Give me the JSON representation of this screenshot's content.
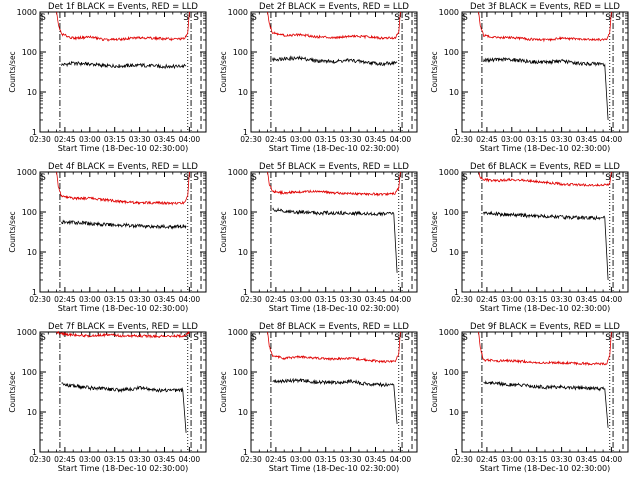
{
  "figure": {
    "panel_title_template": "Det {det} BLACK = Events, RED = LLD",
    "ylabel": "Counts/sec",
    "xlabel": "Start Time (18-Dec-10 02:30:00)",
    "x_tick_labels": [
      "02:30",
      "02:45",
      "03:00",
      "03:15",
      "03:30",
      "03:45",
      "04:00"
    ],
    "y_tick_labels": [
      "1",
      "10",
      "100",
      "1000"
    ],
    "saa_marker": "S",
    "colors": {
      "events": "#000000",
      "lld": "#e00000",
      "axes": "#000000"
    }
  },
  "chart_data": [
    {
      "type": "line",
      "title": "Det 1f BLACK = Events, RED = LLD",
      "det": "1f",
      "xlabel": "Start Time (18-Dec-10 02:30:00)",
      "ylabel": "Counts/sec",
      "x_unit": "minutes after 02:30",
      "xlim": [
        0,
        100
      ],
      "ylim": [
        1,
        1000
      ],
      "yscale": "log",
      "vlines": [
        {
          "x": 12,
          "style": "dashdot"
        },
        {
          "x": 89,
          "style": "dotted"
        },
        {
          "x": 91,
          "style": "dashdot"
        },
        {
          "x": 97,
          "style": "dashed"
        }
      ],
      "series": [
        {
          "name": "BLACK = Events",
          "color": "#000000",
          "x": [
            13,
            20,
            30,
            40,
            50,
            60,
            70,
            80,
            88
          ],
          "values": [
            48,
            52,
            50,
            45,
            45,
            47,
            44,
            43,
            45
          ]
        },
        {
          "name": "RED = LLD",
          "color": "#e00000",
          "x": [
            10,
            11,
            13,
            20,
            30,
            40,
            50,
            60,
            70,
            80,
            87,
            89,
            90
          ],
          "values": [
            1000,
            500,
            280,
            220,
            240,
            200,
            210,
            230,
            220,
            210,
            215,
            300,
            1000
          ]
        }
      ]
    },
    {
      "type": "line",
      "title": "Det 2f BLACK = Events, RED = LLD",
      "det": "2f",
      "xlabel": "Start Time (18-Dec-10 02:30:00)",
      "ylabel": "Counts/sec",
      "x_unit": "minutes after 02:30",
      "xlim": [
        0,
        100
      ],
      "ylim": [
        1,
        1000
      ],
      "yscale": "log",
      "vlines": [
        {
          "x": 12,
          "style": "dashdot"
        },
        {
          "x": 89,
          "style": "dotted"
        },
        {
          "x": 91,
          "style": "dashdot"
        },
        {
          "x": 97,
          "style": "dashed"
        }
      ],
      "series": [
        {
          "name": "BLACK = Events",
          "color": "#000000",
          "x": [
            13,
            20,
            30,
            40,
            50,
            60,
            70,
            80,
            88
          ],
          "values": [
            65,
            68,
            70,
            60,
            58,
            62,
            55,
            50,
            55
          ]
        },
        {
          "name": "RED = LLD",
          "color": "#e00000",
          "x": [
            10,
            11,
            13,
            20,
            30,
            40,
            50,
            60,
            70,
            80,
            87,
            89,
            90
          ],
          "values": [
            1000,
            500,
            300,
            260,
            270,
            240,
            230,
            250,
            240,
            220,
            230,
            300,
            1000
          ]
        }
      ]
    },
    {
      "type": "line",
      "title": "Det 3f BLACK = Events, RED = LLD",
      "det": "3f",
      "xlabel": "Start Time (18-Dec-10 02:30:00)",
      "ylabel": "Counts/sec",
      "x_unit": "minutes after 02:30",
      "xlim": [
        0,
        100
      ],
      "ylim": [
        1,
        1000
      ],
      "yscale": "log",
      "vlines": [
        {
          "x": 12,
          "style": "dashdot"
        },
        {
          "x": 89,
          "style": "dotted"
        },
        {
          "x": 91,
          "style": "dashdot"
        },
        {
          "x": 97,
          "style": "dashed"
        }
      ],
      "series": [
        {
          "name": "BLACK = Events",
          "color": "#000000",
          "x": [
            13,
            20,
            30,
            40,
            50,
            60,
            70,
            80,
            86,
            88
          ],
          "values": [
            62,
            65,
            65,
            58,
            55,
            60,
            52,
            50,
            48,
            2
          ]
        },
        {
          "name": "RED = LLD",
          "color": "#e00000",
          "x": [
            10,
            11,
            13,
            20,
            30,
            40,
            50,
            60,
            70,
            80,
            87,
            89,
            90
          ],
          "values": [
            1000,
            450,
            260,
            230,
            230,
            210,
            200,
            220,
            210,
            200,
            210,
            300,
            1000
          ]
        }
      ]
    },
    {
      "type": "line",
      "title": "Det 4f BLACK = Events, RED = LLD",
      "det": "4f",
      "xlabel": "Start Time (18-Dec-10 02:30:00)",
      "ylabel": "Counts/sec",
      "x_unit": "minutes after 02:30",
      "xlim": [
        0,
        100
      ],
      "ylim": [
        1,
        1000
      ],
      "yscale": "log",
      "vlines": [
        {
          "x": 12,
          "style": "dashdot"
        },
        {
          "x": 89,
          "style": "dotted"
        },
        {
          "x": 91,
          "style": "dashdot"
        },
        {
          "x": 97,
          "style": "dashed"
        }
      ],
      "series": [
        {
          "name": "BLACK = Events",
          "color": "#000000",
          "x": [
            13,
            20,
            30,
            40,
            50,
            60,
            70,
            80,
            88
          ],
          "values": [
            55,
            55,
            52,
            48,
            47,
            45,
            43,
            42,
            45
          ]
        },
        {
          "name": "RED = LLD",
          "color": "#e00000",
          "x": [
            10,
            11,
            13,
            20,
            30,
            40,
            50,
            60,
            70,
            80,
            87,
            89,
            90
          ],
          "values": [
            1000,
            450,
            240,
            220,
            220,
            200,
            180,
            170,
            170,
            165,
            170,
            250,
            1000
          ]
        }
      ]
    },
    {
      "type": "line",
      "title": "Det 5f BLACK = Events, RED = LLD",
      "det": "5f",
      "xlabel": "Start Time (18-Dec-10 02:30:00)",
      "ylabel": "Counts/sec",
      "x_unit": "minutes after 02:30",
      "xlim": [
        0,
        100
      ],
      "ylim": [
        1,
        1000
      ],
      "yscale": "log",
      "vlines": [
        {
          "x": 12,
          "style": "dashdot"
        },
        {
          "x": 89,
          "style": "dotted"
        },
        {
          "x": 91,
          "style": "dashdot"
        },
        {
          "x": 97,
          "style": "dashed"
        }
      ],
      "series": [
        {
          "name": "BLACK = Events",
          "color": "#000000",
          "x": [
            13,
            20,
            30,
            40,
            50,
            60,
            70,
            80,
            86,
            88
          ],
          "values": [
            115,
            105,
            100,
            95,
            95,
            95,
            90,
            90,
            90,
            3
          ]
        },
        {
          "name": "RED = LLD",
          "color": "#e00000",
          "x": [
            10,
            11,
            13,
            20,
            30,
            40,
            50,
            60,
            70,
            80,
            87,
            89,
            90
          ],
          "values": [
            1000,
            500,
            330,
            300,
            320,
            330,
            300,
            290,
            280,
            280,
            290,
            400,
            1000
          ]
        }
      ]
    },
    {
      "type": "line",
      "title": "Det 6f BLACK = Events, RED = LLD",
      "det": "6f",
      "xlabel": "Start Time (18-Dec-10 02:30:00)",
      "ylabel": "Counts/sec",
      "x_unit": "minutes after 02:30",
      "xlim": [
        0,
        100
      ],
      "ylim": [
        1,
        1000
      ],
      "yscale": "log",
      "vlines": [
        {
          "x": 12,
          "style": "dashdot"
        },
        {
          "x": 89,
          "style": "dotted"
        },
        {
          "x": 91,
          "style": "dashdot"
        },
        {
          "x": 97,
          "style": "dashed"
        }
      ],
      "series": [
        {
          "name": "BLACK = Events",
          "color": "#000000",
          "x": [
            13,
            20,
            30,
            40,
            50,
            60,
            70,
            80,
            86,
            88
          ],
          "values": [
            95,
            90,
            85,
            80,
            78,
            75,
            72,
            70,
            72,
            2
          ]
        },
        {
          "name": "RED = LLD",
          "color": "#e00000",
          "x": [
            10,
            11,
            13,
            20,
            30,
            40,
            50,
            60,
            70,
            80,
            87,
            89,
            90
          ],
          "values": [
            1000,
            750,
            650,
            600,
            650,
            600,
            550,
            500,
            480,
            470,
            480,
            500,
            1000
          ]
        }
      ]
    },
    {
      "type": "line",
      "title": "Det 7f BLACK = Events, RED = LLD",
      "det": "7f",
      "xlabel": "Start Time (18-Dec-10 02:30:00)",
      "ylabel": "Counts/sec",
      "x_unit": "minutes after 02:30",
      "xlim": [
        0,
        100
      ],
      "ylim": [
        1,
        1000
      ],
      "yscale": "log",
      "vlines": [
        {
          "x": 12,
          "style": "dashdot"
        },
        {
          "x": 89,
          "style": "dotted"
        },
        {
          "x": 91,
          "style": "dashdot"
        },
        {
          "x": 97,
          "style": "dashed"
        }
      ],
      "series": [
        {
          "name": "BLACK = Events",
          "color": "#000000",
          "x": [
            13,
            20,
            30,
            40,
            50,
            60,
            70,
            80,
            86,
            88
          ],
          "values": [
            50,
            45,
            40,
            38,
            35,
            40,
            35,
            35,
            35,
            3
          ]
        },
        {
          "name": "RED = LLD",
          "color": "#e00000",
          "x": [
            10,
            11,
            13,
            20,
            30,
            40,
            50,
            60,
            70,
            80,
            87,
            89,
            90
          ],
          "values": [
            1000,
            950,
            900,
            850,
            800,
            850,
            800,
            800,
            780,
            800,
            800,
            900,
            1000
          ]
        }
      ]
    },
    {
      "type": "line",
      "title": "Det 8f BLACK = Events, RED = LLD",
      "det": "8f",
      "xlabel": "Start Time (18-Dec-10 02:30:00)",
      "ylabel": "Counts/sec",
      "x_unit": "minutes after 02:30",
      "xlim": [
        0,
        100
      ],
      "ylim": [
        1,
        1000
      ],
      "yscale": "log",
      "vlines": [
        {
          "x": 12,
          "style": "dashdot"
        },
        {
          "x": 89,
          "style": "dotted"
        },
        {
          "x": 91,
          "style": "dashdot"
        },
        {
          "x": 97,
          "style": "dashed"
        }
      ],
      "series": [
        {
          "name": "BLACK = Events",
          "color": "#000000",
          "x": [
            13,
            20,
            30,
            40,
            50,
            60,
            70,
            80,
            86,
            88
          ],
          "values": [
            60,
            60,
            62,
            55,
            55,
            58,
            50,
            48,
            48,
            5
          ]
        },
        {
          "name": "RED = LLD",
          "color": "#e00000",
          "x": [
            10,
            11,
            13,
            20,
            30,
            40,
            50,
            60,
            70,
            80,
            87,
            89,
            90
          ],
          "values": [
            1000,
            450,
            250,
            220,
            240,
            220,
            210,
            220,
            200,
            180,
            190,
            280,
            1000
          ]
        }
      ]
    },
    {
      "type": "line",
      "title": "Det 9f BLACK = Events, RED = LLD",
      "det": "9f",
      "xlabel": "Start Time (18-Dec-10 02:30:00)",
      "ylabel": "Counts/sec",
      "x_unit": "minutes after 02:30",
      "xlim": [
        0,
        100
      ],
      "ylim": [
        1,
        1000
      ],
      "yscale": "log",
      "vlines": [
        {
          "x": 12,
          "style": "dashdot"
        },
        {
          "x": 89,
          "style": "dotted"
        },
        {
          "x": 91,
          "style": "dashdot"
        },
        {
          "x": 97,
          "style": "dashed"
        }
      ],
      "series": [
        {
          "name": "BLACK = Events",
          "color": "#000000",
          "x": [
            13,
            20,
            30,
            40,
            50,
            60,
            70,
            80,
            86,
            88
          ],
          "values": [
            55,
            52,
            48,
            45,
            42,
            42,
            40,
            38,
            38,
            4
          ]
        },
        {
          "name": "RED = LLD",
          "color": "#e00000",
          "x": [
            10,
            11,
            13,
            20,
            30,
            40,
            50,
            60,
            70,
            80,
            87,
            89,
            90
          ],
          "values": [
            1000,
            400,
            200,
            190,
            190,
            180,
            170,
            170,
            165,
            160,
            160,
            250,
            1000
          ]
        }
      ]
    }
  ]
}
